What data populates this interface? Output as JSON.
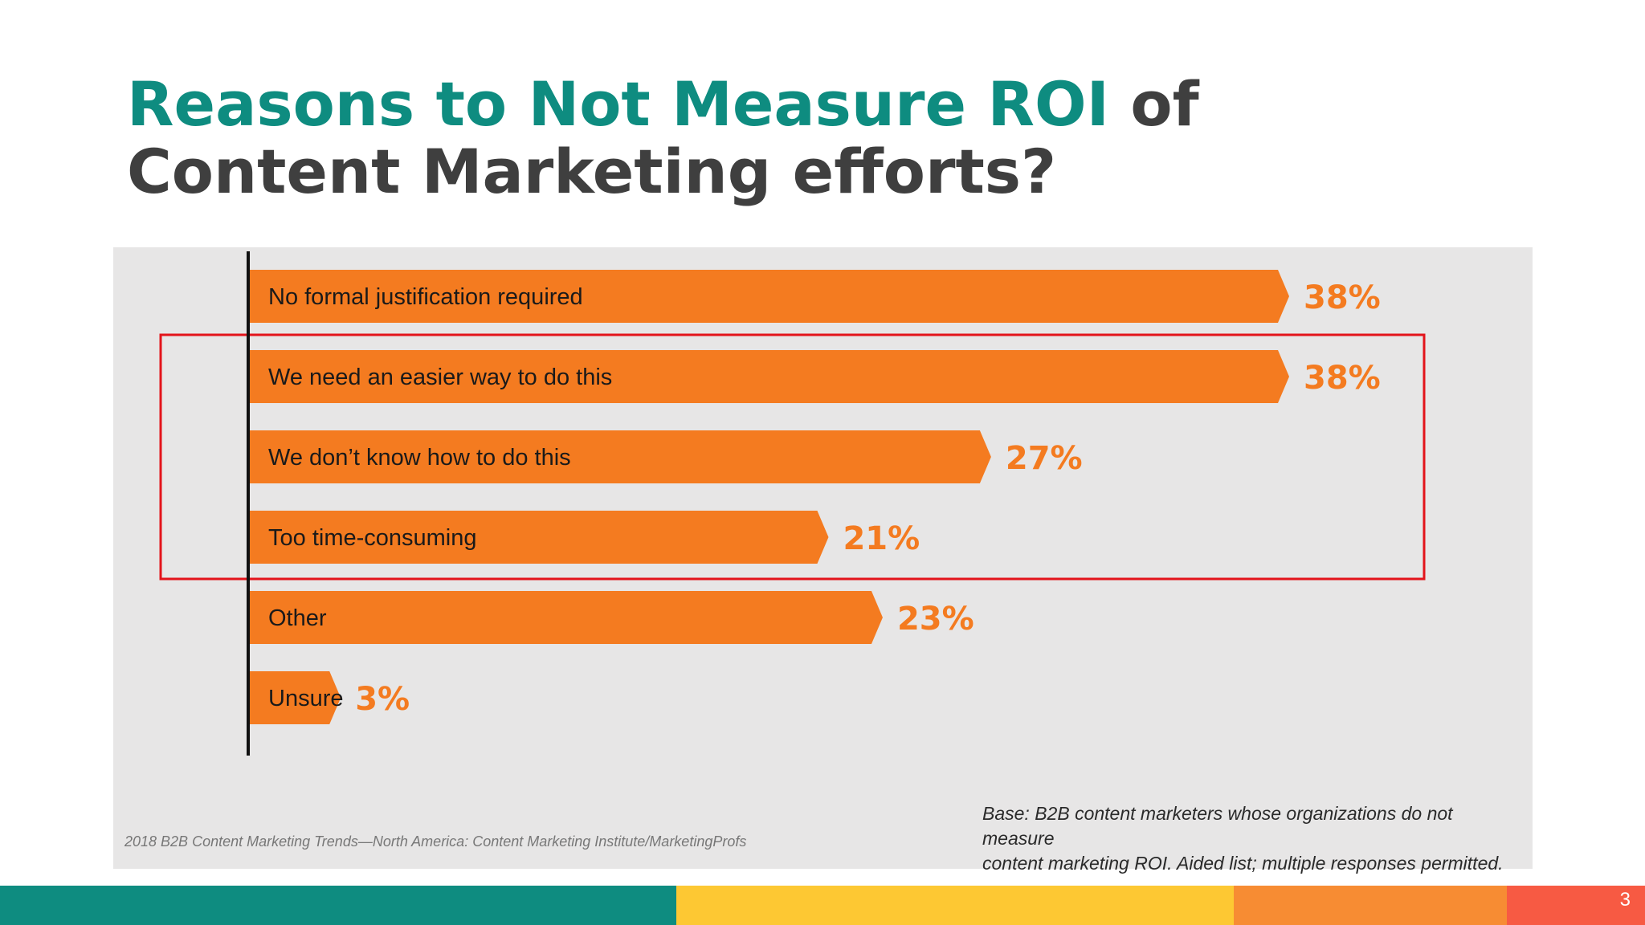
{
  "title": {
    "accent_part": "Reasons to Not Measure ROI",
    "rest_part": " of Content Marketing efforts?"
  },
  "chart_data": {
    "type": "bar",
    "orientation": "horizontal",
    "categories": [
      "No formal justification required",
      "We need an easier way to do this",
      "We don’t know how to do this",
      "Too time-consuming",
      "Other",
      "Unsure"
    ],
    "values": [
      38,
      38,
      27,
      21,
      23,
      3
    ],
    "value_labels": [
      "38%",
      "38%",
      "27%",
      "21%",
      "23%",
      "3%"
    ],
    "unit": "%",
    "xlim": [
      0,
      40
    ],
    "bar_color": "#f47b20",
    "highlighted_categories": [
      "We need an easier way to do this",
      "We don’t know how to do this",
      "Too time-consuming"
    ],
    "highlight_color": "#e3141b",
    "grid": false,
    "legend": "none"
  },
  "notes": {
    "source": "2018 B2B Content Marketing Trends—North America: Content Marketing Institute/MarketingProfs",
    "base_line1": "Base: B2B content marketers whose organizations do not measure",
    "base_line2": "content marketing ROI. Aided list; multiple responses permitted."
  },
  "footer": {
    "page_number": "3",
    "colors": [
      "#0e8c80",
      "#fdc833",
      "#f78c33",
      "#f75a43"
    ]
  }
}
